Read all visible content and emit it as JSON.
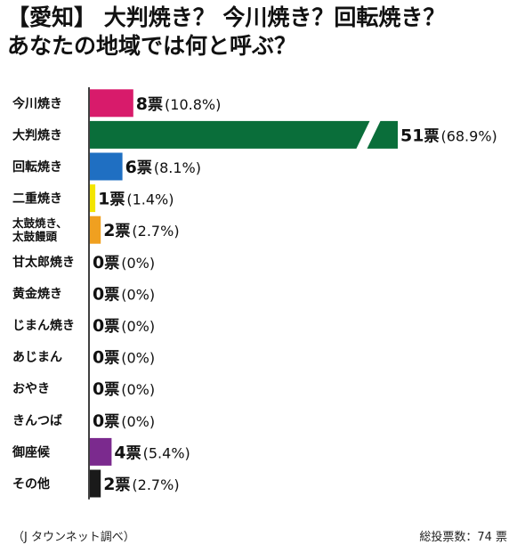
{
  "title_lines": [
    "【愛知】 大判焼き？ 今川焼き？回転焼き？",
    "あなたの地域では何と呼ぶ？"
  ],
  "source": "（J タウンネット調べ）",
  "total": "総投票数：74 票",
  "chart_data": {
    "type": "bar",
    "orientation": "horizontal",
    "unit": "票",
    "axis_break": true,
    "categories": [
      "今川焼き",
      "大判焼き",
      "回転焼き",
      "二重焼き",
      "太鼓焼き、\n太鼓饅頭",
      "甘太郎焼き",
      "黄金焼き",
      "じまん焼き",
      "あじまん",
      "おやき",
      "きんつば",
      "御座候",
      "その他"
    ],
    "values": [
      8,
      51,
      6,
      1,
      2,
      0,
      0,
      0,
      0,
      0,
      0,
      4,
      2
    ],
    "percentages": [
      "10.8%",
      "68.9%",
      "8.1%",
      "1.4%",
      "2.7%",
      "0%",
      "0%",
      "0%",
      "0%",
      "0%",
      "0%",
      "5.4%",
      "2.7%"
    ],
    "colors": [
      "#d81b6b",
      "#0a6e3a",
      "#1f6fc2",
      "#f3e500",
      "#f0a020",
      "#999999",
      "#999999",
      "#999999",
      "#999999",
      "#999999",
      "#999999",
      "#7b2a8e",
      "#1a1a1a"
    ]
  }
}
